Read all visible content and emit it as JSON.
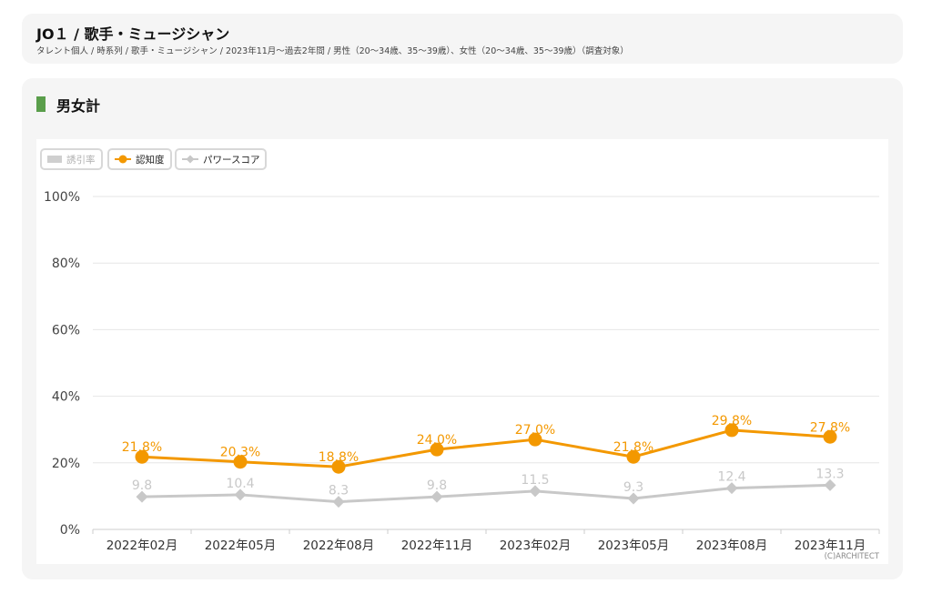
{
  "header": {
    "title": "JO１ / 歌手・ミュージシャン",
    "subtitle": "タレント個人 / 時系列 / 歌手・ミュージシャン / 2023年11月〜過去2年間 / 男性（20〜34歳、35〜39歳）、女性（20〜34歳、35〜39歳）（調査対象）"
  },
  "section": {
    "title": "男女計"
  },
  "legend": {
    "items": [
      {
        "label": "誘引率",
        "state": "off"
      },
      {
        "label": "認知度",
        "state": "on"
      },
      {
        "label": "パワースコア",
        "state": "on"
      }
    ]
  },
  "copyright": "(C)ARCHITECT",
  "colors": {
    "awareness": "#f39800",
    "power": "#c8c8c8",
    "accent": "#5a9e4b"
  },
  "chart_data": {
    "type": "line",
    "categories": [
      "2022年02月",
      "2022年05月",
      "2022年08月",
      "2022年11月",
      "2023年02月",
      "2023年05月",
      "2023年08月",
      "2023年11月"
    ],
    "ylim": [
      0,
      100
    ],
    "yticks": [
      0,
      20,
      40,
      60,
      80,
      100
    ],
    "ytick_suffix": "%",
    "grid": true,
    "legend_position": "top-left",
    "series": [
      {
        "name": "認知度",
        "values": [
          21.8,
          20.3,
          18.8,
          24.0,
          27.0,
          21.8,
          29.8,
          27.8
        ],
        "labels": [
          "21.8%",
          "20.3%",
          "18.8%",
          "24.0%",
          "27.0%",
          "21.8%",
          "29.8%",
          "27.8%"
        ],
        "color": "#f39800",
        "marker": "circle"
      },
      {
        "name": "パワースコア",
        "values": [
          9.8,
          10.4,
          8.3,
          9.8,
          11.5,
          9.3,
          12.4,
          13.3
        ],
        "labels": [
          "9.8",
          "10.4",
          "8.3",
          "9.8",
          "11.5",
          "9.3",
          "12.4",
          "13.3"
        ],
        "color": "#c8c8c8",
        "marker": "diamond"
      }
    ]
  }
}
